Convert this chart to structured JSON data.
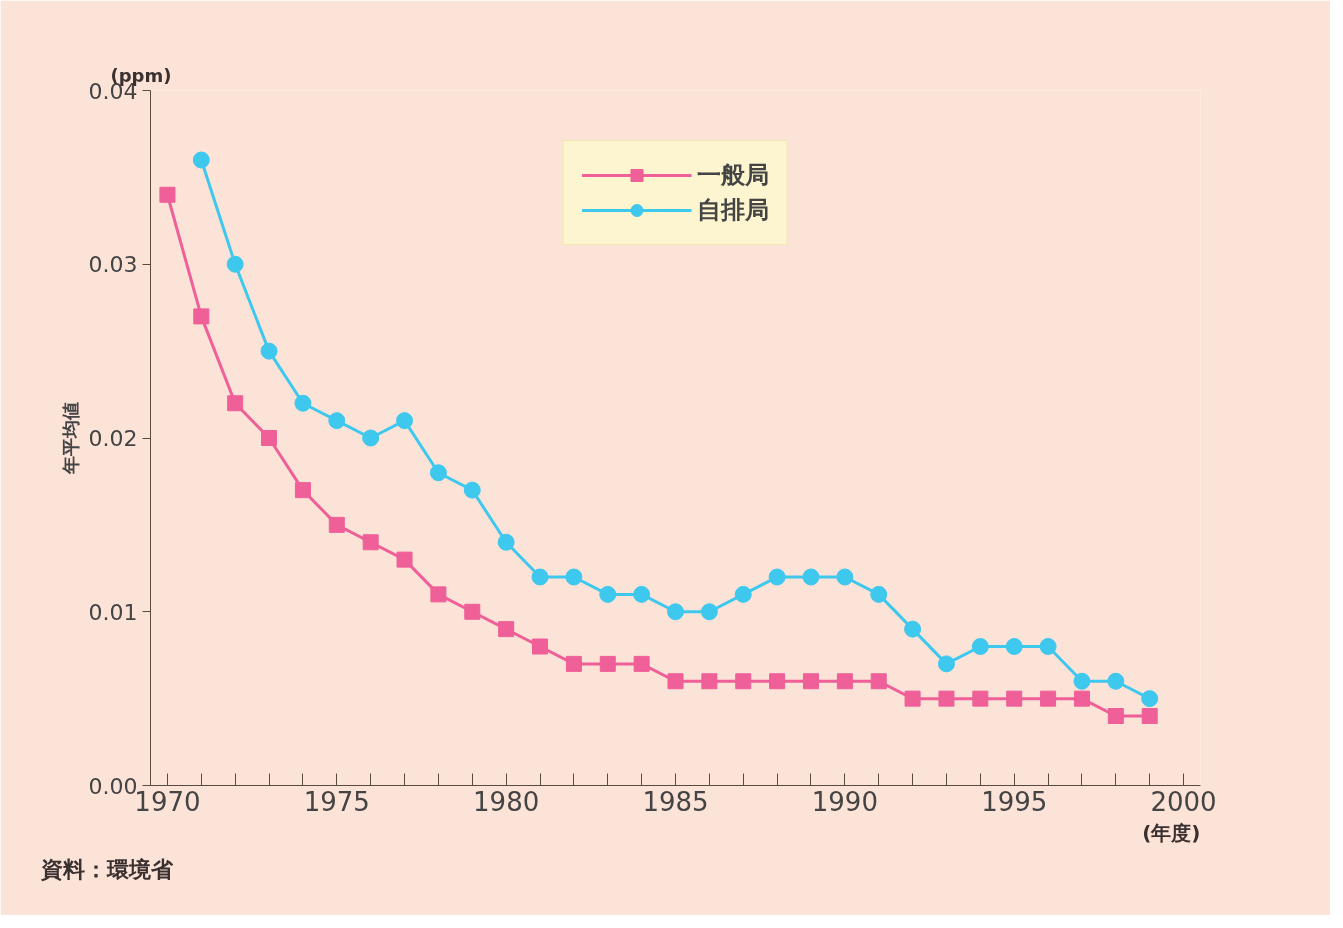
{
  "chart_data": {
    "type": "line",
    "xlabel": "(年度)",
    "ylabel": "年平均値",
    "annotations": [
      "(ppm)",
      "資料：環境省"
    ],
    "xlim": [
      1969.5,
      2000.5
    ],
    "xticks": [
      1970,
      {
        "value": 1971,
        "label": null
      },
      {
        "value": 1972,
        "label": null
      },
      {
        "value": 1973,
        "label": null
      },
      {
        "value": 1974,
        "label": null
      },
      1975,
      {
        "value": 1976,
        "label": null
      },
      {
        "value": 1977,
        "label": null
      },
      {
        "value": 1978,
        "label": null
      },
      {
        "value": 1979,
        "label": null
      },
      1980,
      {
        "value": 1981,
        "label": null
      },
      {
        "value": 1982,
        "label": null
      },
      {
        "value": 1983,
        "label": null
      },
      {
        "value": 1984,
        "label": null
      },
      1985,
      {
        "value": 1986,
        "label": null
      },
      {
        "value": 1987,
        "label": null
      },
      {
        "value": 1988,
        "label": null
      },
      {
        "value": 1989,
        "label": null
      },
      1990,
      {
        "value": 1991,
        "label": null
      },
      {
        "value": 1992,
        "label": null
      },
      {
        "value": 1993,
        "label": null
      },
      {
        "value": 1994,
        "label": null
      },
      1995,
      {
        "value": 1996,
        "label": null
      },
      {
        "value": 1997,
        "label": null
      },
      {
        "value": 1998,
        "label": null
      },
      {
        "value": 1999,
        "label": null
      },
      2000
    ],
    "ylim": [
      0,
      0.04
    ],
    "yticks": [
      {
        "value": 0,
        "label": "0.00"
      },
      {
        "value": 0.01,
        "label": "0.01"
      },
      {
        "value": 0.02,
        "label": "0.02"
      },
      {
        "value": 0.03,
        "label": "0.03"
      },
      {
        "value": 0.04,
        "label": "0.04"
      }
    ],
    "grid": false,
    "legend": "top",
    "line_style": "solid",
    "series": [
      {
        "name": "一般局",
        "color": "#ef5f98",
        "marker": "square",
        "x": [
          1970,
          1971,
          1972,
          1973,
          1974,
          1975,
          1976,
          1977,
          1978,
          1979,
          1980,
          1981,
          1982,
          1983,
          1984,
          1985,
          1986,
          1987,
          1988,
          1989,
          1990,
          1991,
          1992,
          1993,
          1994,
          1995,
          1996,
          1997,
          1998,
          1999
        ],
        "values": [
          0.034,
          0.027,
          0.022,
          0.02,
          0.017,
          0.015,
          0.014,
          0.013,
          0.011,
          0.01,
          0.009,
          0.008,
          0.007,
          0.007,
          0.007,
          0.006,
          0.006,
          0.006,
          0.006,
          0.006,
          0.006,
          0.006,
          0.005,
          0.005,
          0.005,
          0.005,
          0.005,
          0.005,
          0.004,
          0.004
        ]
      },
      {
        "name": "自排局",
        "color": "#3fc8ee",
        "marker": "circle",
        "x": [
          1971,
          1972,
          1973,
          1974,
          1975,
          1976,
          1977,
          1978,
          1979,
          1980,
          1981,
          1982,
          1983,
          1984,
          1985,
          1986,
          1987,
          1988,
          1989,
          1990,
          1991,
          1992,
          1993,
          1994,
          1995,
          1996,
          1997,
          1998,
          1999
        ],
        "values": [
          0.036,
          0.03,
          0.025,
          0.022,
          0.021,
          0.02,
          0.021,
          0.018,
          0.017,
          0.014,
          0.012,
          0.012,
          0.011,
          0.011,
          0.01,
          0.01,
          0.011,
          0.012,
          0.012,
          0.012,
          0.011,
          0.009,
          0.007,
          0.008,
          0.008,
          0.008,
          0.006,
          0.006,
          0.005
        ]
      }
    ]
  }
}
